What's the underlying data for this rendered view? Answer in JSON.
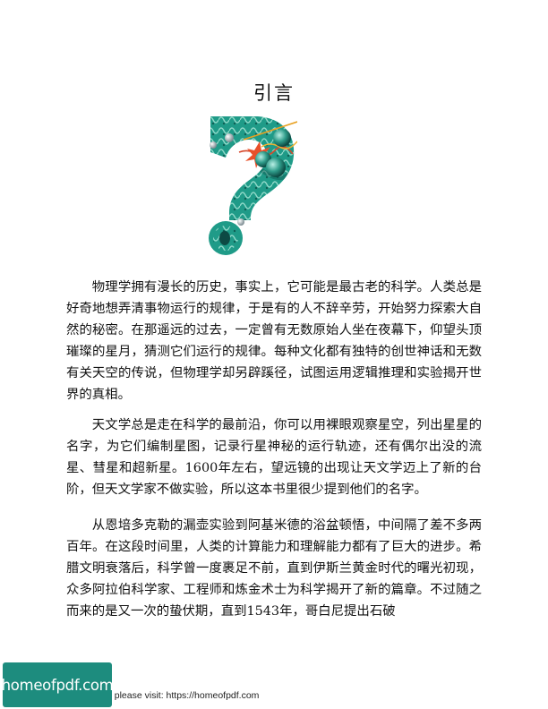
{
  "page": {
    "title": "引言",
    "paragraphs": [
      "物理学拥有漫长的历史，事实上，它可能是最古老的科学。人类总是好奇地想弄清事物运行的规律，于是有的人不辞辛劳，开始努力探索大自然的秘密。在那遥远的过去，一定曾有无数原始人坐在夜幕下，仰望头顶璀璨的星月，猜测它们运行的规律。每种文化都有独特的创世神话和无数有关天空的传说，但物理学却另辟蹊径，试图运用逻辑推理和实验揭开世界的真相。",
      "天文学总是走在科学的最前沿，你可以用裸眼观察星空，列出星星的名字，为它们编制星图，记录行星神秘的运行轨迹，还有偶尔出没的流星、彗星和超新星。1600年左右，望远镜的出现让天文学迈上了新的台阶，但天文学家不做实验，所以这本书里很少提到他们的名字。",
      "从恩培多克勒的漏壶实验到阿基米德的浴盆顿悟，中间隔了差不多两百年。在这段时间里，人类的计算能力和理解能力都有了巨大的进步。希腊文明衰落后，科学曾一度裹足不前，直到伊斯兰黄金时代的曙光初现，众多阿拉伯科学家、工程师和炼金术士为科学揭开了新的篇章。不过随之而来的是又一次的蛰伏期，直到1543年，哥白尼提出石破"
    ]
  },
  "footer": {
    "logo_text": "homeofpdf.com",
    "note": "e please visit: https://homeofpdf.com"
  },
  "colors": {
    "teal": "#1d8c7e",
    "ink": "#111111"
  }
}
